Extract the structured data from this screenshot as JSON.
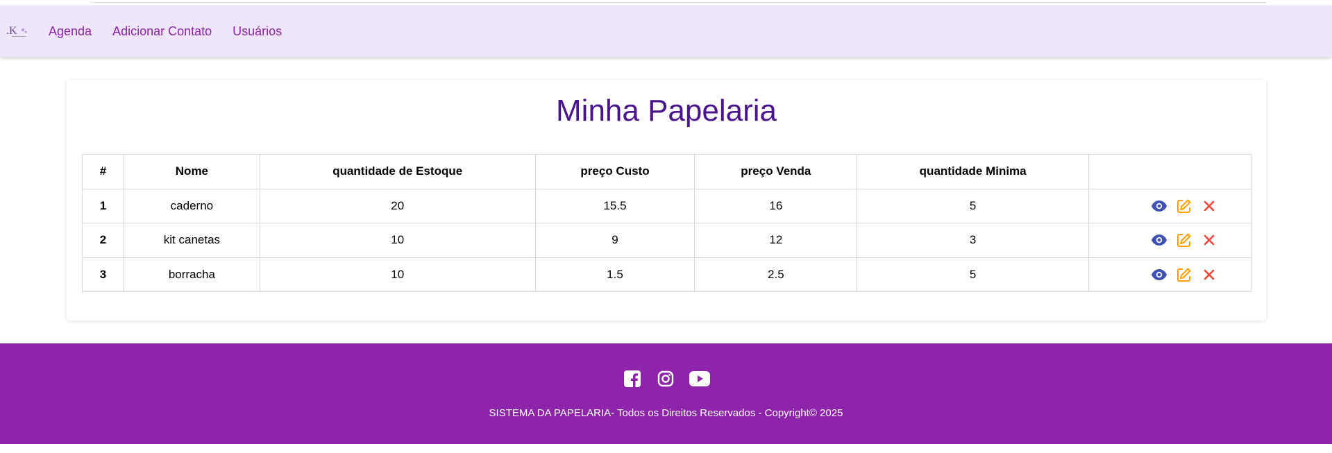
{
  "nav": {
    "links": [
      "Agenda",
      "Adicionar Contato",
      "Usuários"
    ]
  },
  "main": {
    "title": "Minha Papelaria",
    "table": {
      "headers": [
        "#",
        "Nome",
        "quantidade de Estoque",
        "preço Custo",
        "preço Venda",
        "quantidade Minima",
        ""
      ],
      "rows": [
        [
          "1",
          "caderno",
          "20",
          "15.5",
          "16",
          "5"
        ],
        [
          "2",
          "kit canetas",
          "10",
          "9",
          "12",
          "3"
        ],
        [
          "3",
          "borracha",
          "10",
          "1.5",
          "2.5",
          "5"
        ]
      ]
    }
  },
  "footer": {
    "copyright": "SISTEMA DA PAPELARIA- Todos os Direitos Reservados - Copyright© 2025"
  },
  "icons": {
    "view": "eye-icon",
    "edit": "edit-icon",
    "delete": "close-icon",
    "social": [
      "facebook-icon",
      "instagram-icon",
      "youtube-icon"
    ]
  },
  "colors": {
    "nav_bg": "#efe5fd",
    "accent": "#8e24aa",
    "title": "#4a148c",
    "view": "#3f51b5",
    "edit": "#ffa000",
    "delete": "#f44336"
  }
}
